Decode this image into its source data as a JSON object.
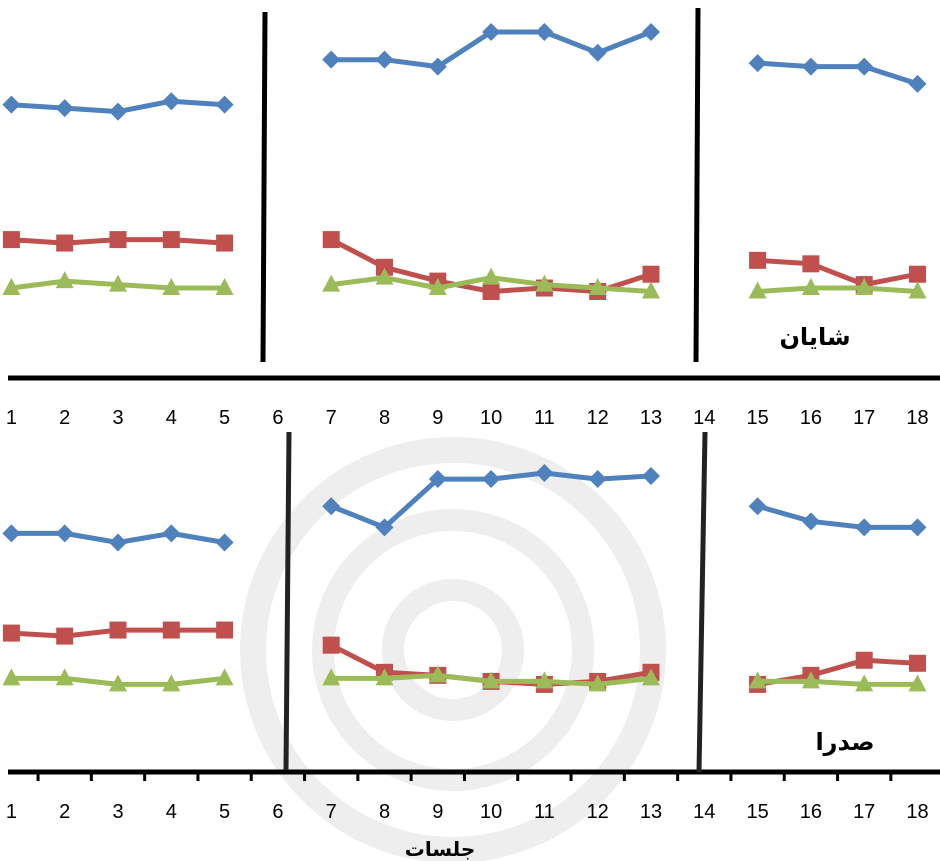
{
  "chart_data": [
    {
      "type": "line",
      "title": "شایان",
      "x": [
        1,
        2,
        3,
        4,
        5,
        6,
        7,
        8,
        9,
        10,
        11,
        12,
        13,
        14,
        15,
        16,
        17,
        18
      ],
      "tick_labels": [
        "1",
        "2",
        "3",
        "4",
        "5",
        "6",
        "7",
        "8",
        "9",
        "10",
        "11",
        "12",
        "13",
        "14",
        "15",
        "16",
        "17",
        "18"
      ],
      "phase_breaks": [
        6,
        14
      ],
      "series": [
        {
          "marker": "diamond",
          "color": "#4f81bd",
          "values": [
            [
              1,
              0.79
            ],
            [
              2,
              0.78
            ],
            [
              3,
              0.77
            ],
            [
              4,
              0.8
            ],
            [
              5,
              0.79
            ],
            [
              7,
              0.92
            ],
            [
              8,
              0.92
            ],
            [
              9,
              0.9
            ],
            [
              10,
              1.0
            ],
            [
              11,
              1.0
            ],
            [
              12,
              0.94
            ],
            [
              13,
              1.0
            ],
            [
              15,
              0.91
            ],
            [
              16,
              0.9
            ],
            [
              17,
              0.9
            ],
            [
              18,
              0.85
            ]
          ]
        },
        {
          "marker": "square",
          "color": "#c0504d",
          "values": [
            [
              1,
              0.4
            ],
            [
              2,
              0.39
            ],
            [
              3,
              0.4
            ],
            [
              4,
              0.4
            ],
            [
              5,
              0.39
            ],
            [
              7,
              0.4
            ],
            [
              8,
              0.32
            ],
            [
              9,
              0.28
            ],
            [
              10,
              0.25
            ],
            [
              11,
              0.26
            ],
            [
              12,
              0.25
            ],
            [
              13,
              0.3
            ],
            [
              15,
              0.34
            ],
            [
              16,
              0.33
            ],
            [
              17,
              0.27
            ],
            [
              18,
              0.3
            ]
          ]
        },
        {
          "marker": "triangle",
          "color": "#9bbb59",
          "values": [
            [
              1,
              0.26
            ],
            [
              2,
              0.28
            ],
            [
              3,
              0.27
            ],
            [
              4,
              0.26
            ],
            [
              5,
              0.26
            ],
            [
              7,
              0.27
            ],
            [
              8,
              0.29
            ],
            [
              9,
              0.26
            ],
            [
              10,
              0.29
            ],
            [
              11,
              0.27
            ],
            [
              12,
              0.26
            ],
            [
              13,
              0.25
            ],
            [
              15,
              0.25
            ],
            [
              16,
              0.26
            ],
            [
              17,
              0.26
            ],
            [
              18,
              0.25
            ]
          ]
        }
      ]
    },
    {
      "type": "line",
      "title": "صدرا",
      "xlabel": "جلسات",
      "x": [
        1,
        2,
        3,
        4,
        5,
        6,
        7,
        8,
        9,
        10,
        11,
        12,
        13,
        14,
        15,
        16,
        17,
        18
      ],
      "tick_labels": [
        "1",
        "2",
        "3",
        "4",
        "5",
        "6",
        "7",
        "8",
        "9",
        "10",
        "11",
        "12",
        "13",
        "14",
        "15",
        "16",
        "17",
        "18"
      ],
      "phase_breaks": [
        6,
        14
      ],
      "series": [
        {
          "marker": "diamond",
          "color": "#4f81bd",
          "values": [
            [
              1,
              0.79
            ],
            [
              2,
              0.79
            ],
            [
              3,
              0.76
            ],
            [
              4,
              0.79
            ],
            [
              5,
              0.76
            ],
            [
              7,
              0.88
            ],
            [
              8,
              0.81
            ],
            [
              9,
              0.97
            ],
            [
              10,
              0.97
            ],
            [
              11,
              0.99
            ],
            [
              12,
              0.97
            ],
            [
              13,
              0.98
            ],
            [
              15,
              0.88
            ],
            [
              16,
              0.83
            ],
            [
              17,
              0.81
            ],
            [
              18,
              0.81
            ]
          ]
        },
        {
          "marker": "square",
          "color": "#c0504d",
          "values": [
            [
              1,
              0.46
            ],
            [
              2,
              0.45
            ],
            [
              3,
              0.47
            ],
            [
              4,
              0.47
            ],
            [
              5,
              0.47
            ],
            [
              7,
              0.42
            ],
            [
              8,
              0.33
            ],
            [
              9,
              0.32
            ],
            [
              10,
              0.3
            ],
            [
              11,
              0.29
            ],
            [
              12,
              0.3
            ],
            [
              13,
              0.33
            ],
            [
              15,
              0.29
            ],
            [
              16,
              0.32
            ],
            [
              17,
              0.37
            ],
            [
              18,
              0.36
            ]
          ]
        },
        {
          "marker": "triangle",
          "color": "#9bbb59",
          "values": [
            [
              1,
              0.31
            ],
            [
              2,
              0.31
            ],
            [
              3,
              0.29
            ],
            [
              4,
              0.29
            ],
            [
              5,
              0.31
            ],
            [
              7,
              0.31
            ],
            [
              8,
              0.31
            ],
            [
              9,
              0.32
            ],
            [
              10,
              0.3
            ],
            [
              11,
              0.3
            ],
            [
              12,
              0.29
            ],
            [
              13,
              0.31
            ],
            [
              15,
              0.3
            ],
            [
              16,
              0.3
            ],
            [
              17,
              0.29
            ],
            [
              18,
              0.29
            ]
          ]
        }
      ]
    }
  ]
}
